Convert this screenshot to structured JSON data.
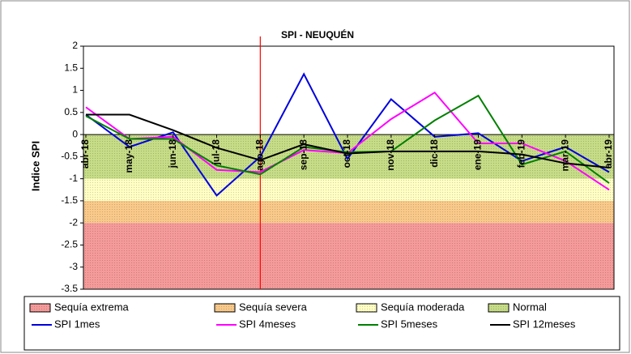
{
  "chart_data": {
    "type": "line",
    "title": "SPI - NEUQUÉN",
    "y_label": "Indice SPI",
    "categories": [
      "abr-18",
      "may-18",
      "jun-18",
      "jul-18",
      "ago-18",
      "sep-18",
      "oct-18",
      "nov-18",
      "dic-18",
      "ene-19",
      "feb-19",
      "mar-19",
      "abr-19"
    ],
    "ylim": [
      -3.5,
      2
    ],
    "yticks": [
      2,
      1.5,
      1,
      0.5,
      0,
      -0.5,
      -1,
      -1.5,
      -2,
      -2.5,
      -3,
      -3.5
    ],
    "vline_category": "ago-18",
    "vline_color": "#ff0000",
    "bands": [
      {
        "name": "Sequía extrema",
        "color": "#f59a9a",
        "range": [
          -3.5,
          -2
        ]
      },
      {
        "name": "Sequía severa",
        "color": "#f9c98a",
        "range": [
          -2,
          -1.5
        ]
      },
      {
        "name": "Sequía moderada",
        "color": "#ffffc4",
        "range": [
          -1.5,
          -1
        ]
      },
      {
        "name": "Normal",
        "color": "#c6dc86",
        "range": [
          -1,
          0
        ]
      }
    ],
    "series": [
      {
        "name": "SPI 1mes",
        "color": "#0000dd",
        "values": [
          0.45,
          -0.28,
          0.05,
          -1.38,
          -0.5,
          1.37,
          -0.55,
          0.8,
          -0.05,
          0.03,
          -0.6,
          -0.28,
          -0.85
        ]
      },
      {
        "name": "SPI 4meses",
        "color": "#ff00ff",
        "values": [
          0.62,
          -0.1,
          -0.05,
          -0.8,
          -0.85,
          -0.35,
          -0.42,
          0.35,
          0.95,
          -0.2,
          -0.2,
          -0.6,
          -1.25
        ]
      },
      {
        "name": "SPI 5meses",
        "color": "#008000",
        "values": [
          0.42,
          -0.1,
          -0.1,
          -0.7,
          -0.9,
          -0.28,
          -0.4,
          -0.38,
          0.32,
          0.88,
          -0.68,
          -0.38,
          -1.1
        ]
      },
      {
        "name": "SPI 12meses",
        "color": "#000000",
        "values": [
          0.45,
          0.45,
          0.1,
          -0.3,
          -0.58,
          -0.22,
          -0.43,
          -0.38,
          -0.38,
          -0.38,
          -0.45,
          -0.65,
          -0.75
        ]
      }
    ]
  }
}
